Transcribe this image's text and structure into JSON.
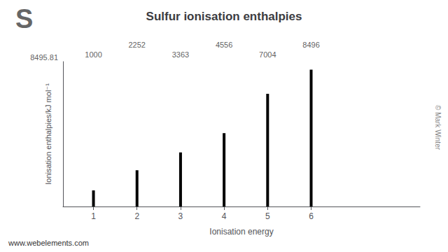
{
  "chart_data": {
    "type": "bar",
    "title": "Sulfur ionisation enthalpies",
    "xlabel": "Ionisation energy",
    "ylabel": "Ionisation enthalpies/kJ mol⁻¹",
    "x": [
      1,
      2,
      3,
      4,
      5,
      6
    ],
    "values": [
      1000,
      2252,
      3363,
      4556,
      7004,
      8496
    ],
    "color": "#000000",
    "xlim": [
      0.3,
      8.5
    ],
    "xticks": [
      1,
      2,
      3,
      4,
      5,
      6
    ],
    "ylim": [
      0,
      9000
    ],
    "yticks": [],
    "tick_labels": "x",
    "grid": false,
    "annotations": [
      {
        "text": "1000",
        "x": 1,
        "y": 9000
      },
      {
        "text": "2252",
        "x": 2,
        "y": 9000
      },
      {
        "text": "3363",
        "x": 3,
        "y": 9000
      },
      {
        "text": "4556",
        "x": 4,
        "y": 9000
      },
      {
        "text": "7004",
        "x": 5,
        "y": 9000
      },
      {
        "text": "8496",
        "x": 6,
        "y": 9000
      },
      {
        "text": "8495.81",
        "y": 9000
      },
      "S",
      "www.webelements.com",
      "© Mark Winter"
    ]
  }
}
